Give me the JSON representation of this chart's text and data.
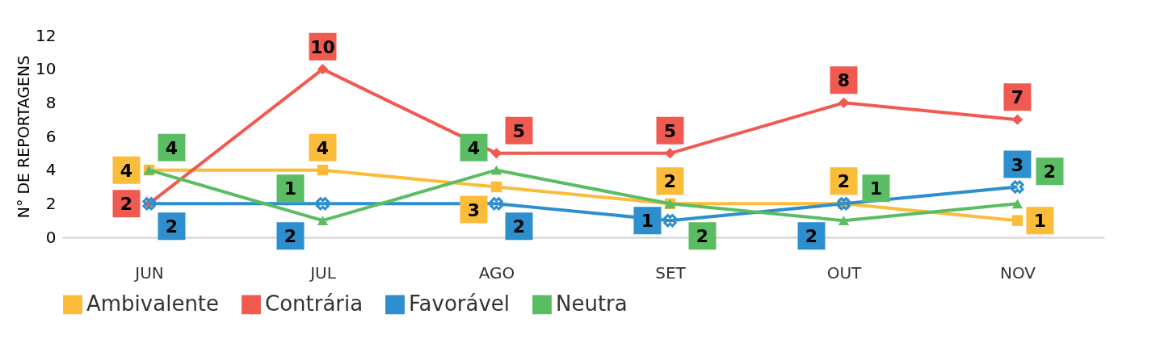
{
  "chart_data": {
    "type": "line",
    "ylabel": "N° DE REPORTAGENS",
    "categories": [
      "JUN",
      "JUL",
      "AGO",
      "SET",
      "OUT",
      "NOV"
    ],
    "series": [
      {
        "name": "Ambivalente",
        "color": "#fbbc3a",
        "marker": "square",
        "values": [
          4,
          4,
          3,
          2,
          2,
          1
        ]
      },
      {
        "name": "Contrária",
        "color": "#f05a50",
        "marker": "diamond",
        "values": [
          2,
          10,
          5,
          5,
          8,
          7
        ]
      },
      {
        "name": "Favorável",
        "color": "#2e8fcf",
        "marker": "cross",
        "values": [
          2,
          2,
          2,
          1,
          2,
          3
        ]
      },
      {
        "name": "Neutra",
        "color": "#5bbd63",
        "marker": "triangle",
        "values": [
          4,
          1,
          4,
          2,
          1,
          2
        ]
      }
    ],
    "ylim": [
      0,
      12
    ],
    "yticks": [
      0,
      2,
      4,
      6,
      8,
      10,
      12
    ],
    "grid": false,
    "legend": "bottom",
    "data_labels": true
  }
}
